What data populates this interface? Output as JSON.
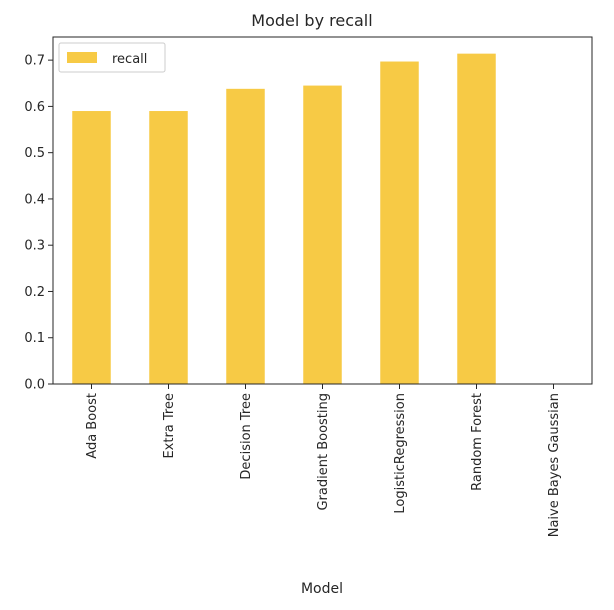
{
  "chart_data": {
    "type": "bar",
    "title": "Model by recall",
    "xlabel": "Model",
    "ylabel": "",
    "categories": [
      "Ada Boost",
      "Extra Tree",
      "Decision Tree",
      "Gradient Boosting",
      "LogisticRegression",
      "Random Forest",
      "Naive Bayes Gaussian"
    ],
    "series": [
      {
        "name": "recall",
        "values": [
          0.59,
          0.59,
          0.638,
          0.645,
          0.697,
          0.714,
          0.0
        ],
        "color": "#f7ca45"
      }
    ],
    "ylim": [
      0,
      0.75
    ],
    "yticks": [
      "0.0",
      "0.1",
      "0.2",
      "0.3",
      "0.4",
      "0.5",
      "0.6",
      "0.7"
    ],
    "grid": false,
    "legend_position": "top-left"
  }
}
